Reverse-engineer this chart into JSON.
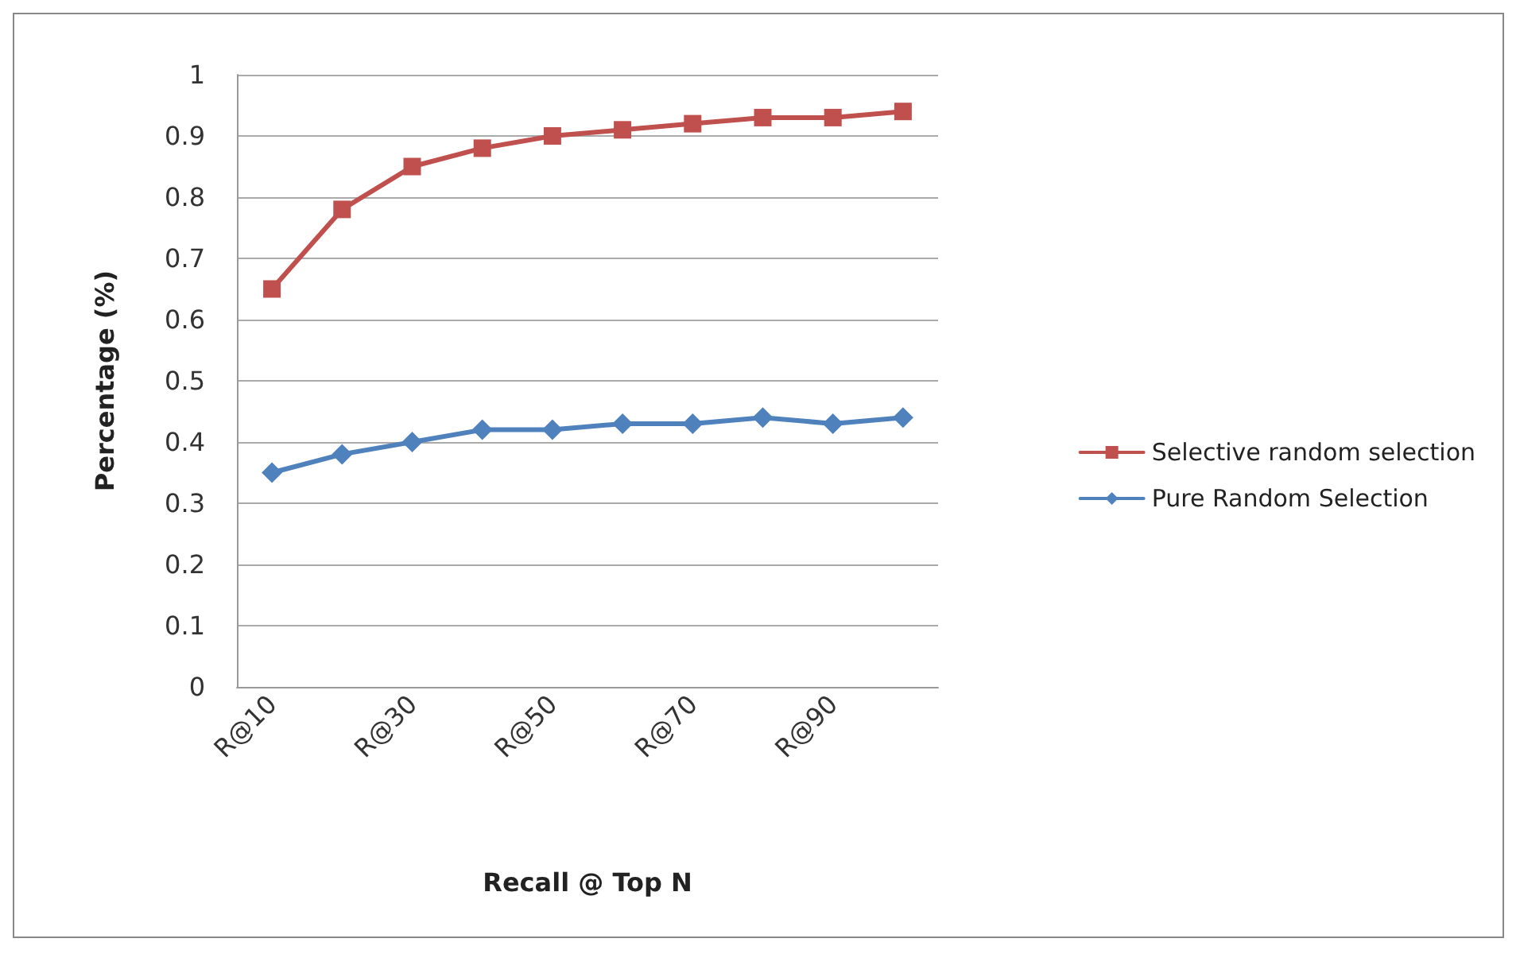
{
  "chart_data": {
    "type": "line",
    "xlabel": "Recall @ Top N",
    "ylabel": "Percentage (%)",
    "categories": [
      "R@10",
      null,
      "R@30",
      null,
      "R@50",
      null,
      "R@70",
      null,
      "R@90",
      null
    ],
    "series": [
      {
        "name": "Selective random selection",
        "color": "#c0504d",
        "marker": "square",
        "values": [
          0.65,
          0.78,
          0.85,
          0.88,
          0.9,
          0.91,
          0.92,
          0.93,
          0.93,
          0.94
        ]
      },
      {
        "name": "Pure Random Selection",
        "color": "#4f81bd",
        "marker": "diamond",
        "values": [
          0.35,
          0.38,
          0.4,
          0.42,
          0.42,
          0.43,
          0.43,
          0.44,
          0.43,
          0.44
        ]
      }
    ],
    "ylim": [
      0,
      1
    ],
    "yticks": [
      0,
      0.1,
      0.2,
      0.3,
      0.4,
      0.5,
      0.6,
      0.7,
      0.8,
      0.9,
      1
    ],
    "grid": "y",
    "legend": "right",
    "line_style": "solid"
  }
}
